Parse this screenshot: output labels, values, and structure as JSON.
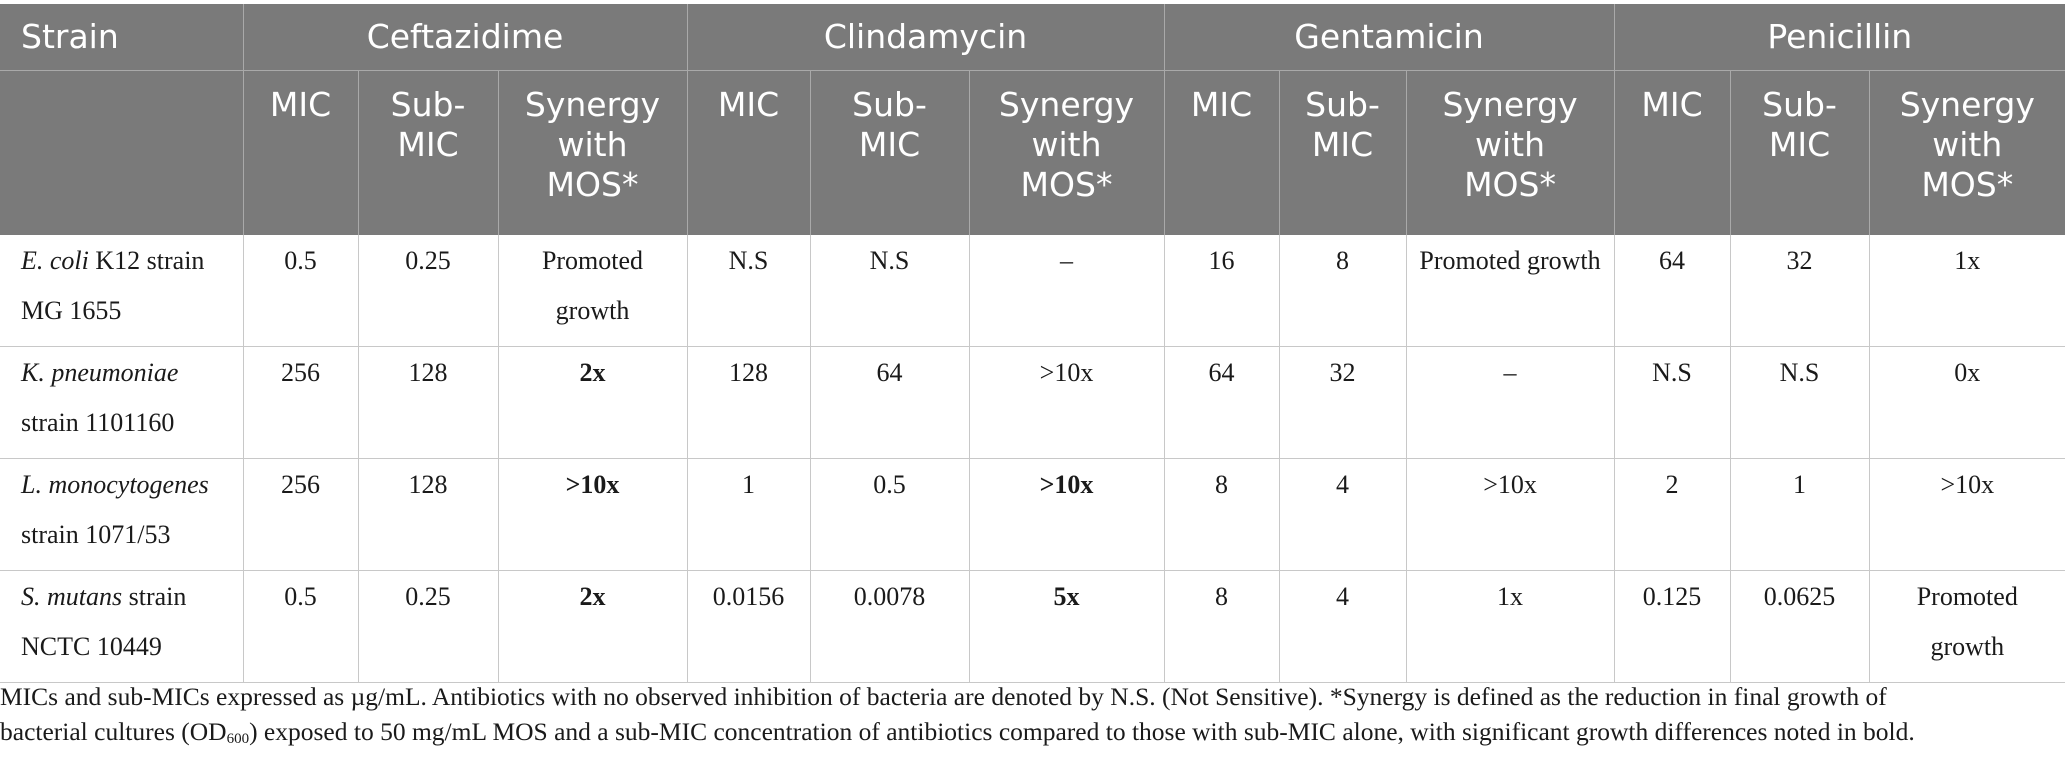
{
  "header": {
    "strain_label": "Strain",
    "antibiotics": [
      "Ceftazidime",
      "Clindamycin",
      "Gentamicin",
      "Penicillin"
    ],
    "sub_columns": [
      {
        "mic": "MIC",
        "sub_a": "Sub-",
        "sub_b": "MIC",
        "syn_a": "Synergy",
        "syn_b": "with",
        "syn_c": "MOS*"
      },
      {
        "mic": "MIC",
        "sub_a": "Sub-",
        "sub_b": "MIC",
        "syn_a": "Synergy",
        "syn_b": "with",
        "syn_c": "MOS*"
      },
      {
        "mic": "MIC",
        "sub_a": "Sub-",
        "sub_b": "MIC",
        "syn_a": "Synergy",
        "syn_b": "with",
        "syn_c": "MOS*"
      },
      {
        "mic": "MIC",
        "sub_a": "Sub-",
        "sub_b": "MIC",
        "syn_a": "Synergy",
        "syn_b": "with",
        "syn_c": "MOS*"
      }
    ]
  },
  "rows": [
    {
      "species": "E. coli",
      "strain_rest": " K12 strain",
      "strain_line2": "MG 1655",
      "cells": [
        "0.5",
        "0.25",
        "Promoted growth",
        "N.S",
        "N.S",
        "–",
        "16",
        "8",
        "Promoted growth",
        "64",
        "32",
        "1x"
      ]
    },
    {
      "species": "K. pneumoniae",
      "strain_rest": "",
      "strain_line2": "strain 1101160",
      "cells": [
        "256",
        "128",
        "2x",
        "128",
        "64",
        ">10x",
        "64",
        "32",
        "–",
        "N.S",
        "N.S",
        "0x"
      ]
    },
    {
      "species": "L. monocytogenes",
      "strain_rest": "",
      "strain_line2": "strain 1071/53",
      "cells": [
        "256",
        "128",
        ">10x",
        "1",
        "0.5",
        ">10x",
        "8",
        "4",
        ">10x",
        "2",
        "1",
        ">10x"
      ]
    },
    {
      "species": "S. mutans",
      "strain_rest": " strain",
      "strain_line2": "NCTC 10449",
      "cells": [
        "0.5",
        "0.25",
        "2x",
        "0.0156",
        "0.0078",
        "5x",
        "8",
        "4",
        "1x",
        "0.125",
        "0.0625",
        "Promoted growth"
      ]
    }
  ],
  "footnote": {
    "line1": "MICs and sub-MICs expressed as µg/mL. Antibiotics with no observed inhibition of bacteria are denoted by N.S. (Not Sensitive). *Synergy is defined as the reduction in final growth of",
    "line2_pre": "bacterial cultures (OD",
    "line2_sub": "600",
    "line2_post": ") exposed to 50 mg/mL MOS and a sub-MIC concentration of antibiotics compared to those with sub-MIC alone, with significant growth differences noted in bold."
  },
  "colors": {
    "header_bg": "#7a7a7a",
    "header_text": "#ffffff",
    "grid_line": "#c8c8c8",
    "body_text": "#1a1a1a"
  }
}
